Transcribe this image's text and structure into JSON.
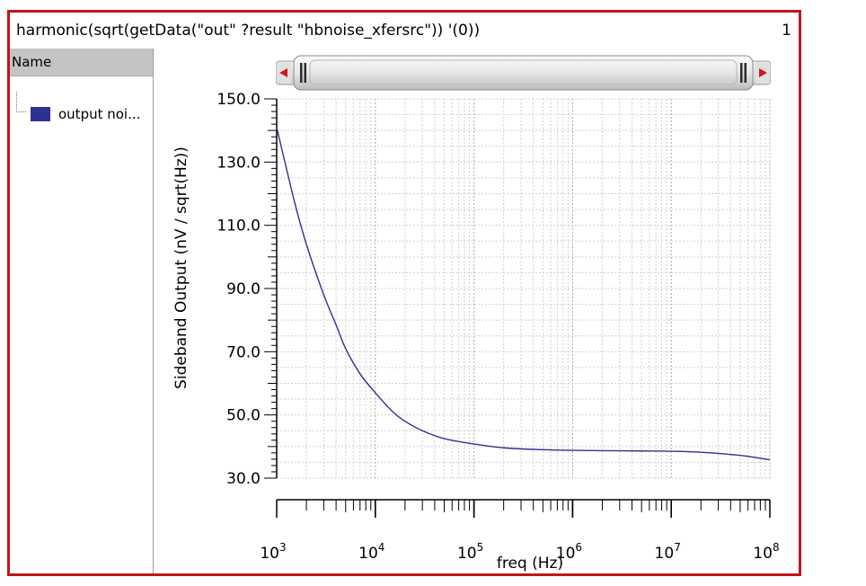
{
  "window": {
    "title": "harmonic(sqrt(getData(\"out\" ?result \"hbnoise_xfersrc\")) '(0))",
    "number": "1"
  },
  "legend": {
    "header": "Name",
    "group_label": "",
    "items": [
      {
        "label": "output noi...",
        "color": "#2e3192"
      }
    ]
  },
  "scrollbar": {
    "icon": "range-slider"
  },
  "chart_data": {
    "type": "line",
    "title": "",
    "xlabel": "freq (Hz)",
    "ylabel": "Sideband Output (nV / sqrt(Hz))",
    "xscale": "log",
    "xlim": [
      1000,
      100000000
    ],
    "ylim": [
      30.0,
      150.0
    ],
    "grid": true,
    "x_ticks": [
      {
        "base": "10",
        "exp": "3",
        "value": 1000
      },
      {
        "base": "10",
        "exp": "4",
        "value": 10000
      },
      {
        "base": "10",
        "exp": "5",
        "value": 100000
      },
      {
        "base": "10",
        "exp": "6",
        "value": 1000000
      },
      {
        "base": "10",
        "exp": "7",
        "value": 10000000
      },
      {
        "base": "10",
        "exp": "8",
        "value": 100000000
      }
    ],
    "y_ticks": [
      "30.0",
      "50.0",
      "70.0",
      "90.0",
      "110.0",
      "130.0",
      "150.0"
    ],
    "series": [
      {
        "color": "#2e3192",
        "x": [
          1000,
          1500,
          2000,
          3000,
          4000,
          5000,
          7000,
          10000,
          15000,
          20000,
          30000,
          50000,
          100000,
          200000,
          500000,
          1000000,
          2000000,
          5000000,
          10000000,
          20000000,
          50000000,
          100000000
        ],
        "y": [
          141.0,
          118.0,
          104.0,
          88.0,
          78.5,
          71.0,
          63.0,
          57.0,
          51.0,
          48.0,
          45.0,
          42.5,
          40.8,
          39.6,
          39.0,
          38.8,
          38.7,
          38.6,
          38.5,
          38.2,
          37.2,
          35.8
        ]
      }
    ]
  }
}
